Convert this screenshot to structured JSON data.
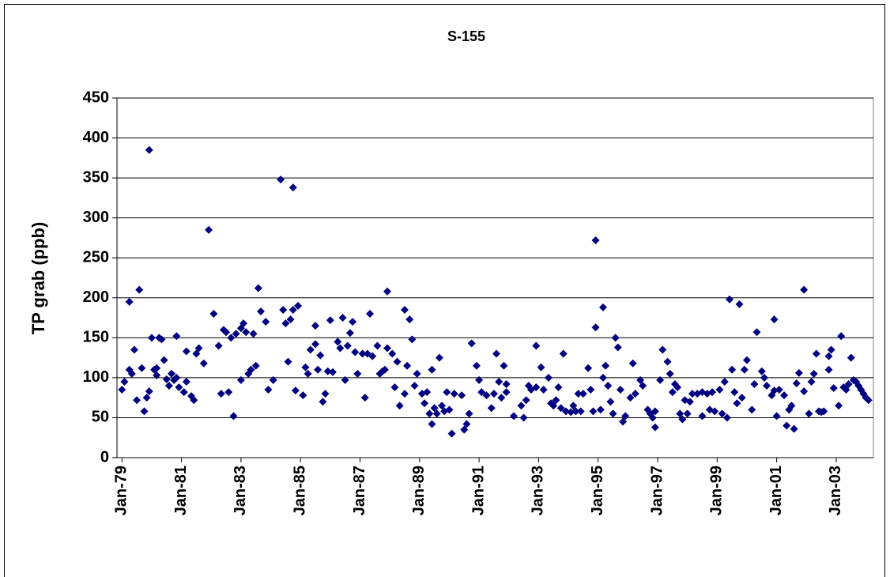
{
  "chart_data": {
    "type": "scatter",
    "title": "S-155",
    "y_label": "TP grab (ppb)",
    "color": "#000080",
    "grid": true,
    "x": [
      "1979-01",
      "1979-02",
      "1979-04",
      "1979-04",
      "1979-05",
      "1979-06",
      "1979-07",
      "1979-08",
      "1979-09",
      "1979-10",
      "1979-11",
      "1979-12",
      "1979-12",
      "1980-01",
      "1980-02",
      "1980-03",
      "1980-03",
      "1980-04",
      "1980-05",
      "1980-06",
      "1980-07",
      "1980-08",
      "1980-09",
      "1980-10",
      "1980-11",
      "1980-11",
      "1980-12",
      "1981-02",
      "1981-03",
      "1981-03",
      "1981-05",
      "1981-06",
      "1981-07",
      "1981-08",
      "1981-10",
      "1981-12",
      "1982-02",
      "1982-04",
      "1982-05",
      "1982-06",
      "1982-07",
      "1982-08",
      "1982-09",
      "1982-10",
      "1982-11",
      "1983-01",
      "1983-01",
      "1983-02",
      "1983-03",
      "1983-04",
      "1983-05",
      "1983-06",
      "1983-07",
      "1983-08",
      "1983-09",
      "1983-11",
      "1983-12",
      "1984-02",
      "1984-05",
      "1984-06",
      "1984-07",
      "1984-08",
      "1984-09",
      "1984-10",
      "1984-10",
      "1984-11",
      "1984-12",
      "1985-02",
      "1985-03",
      "1985-04",
      "1985-05",
      "1985-07",
      "1985-07",
      "1985-08",
      "1985-09",
      "1985-10",
      "1985-11",
      "1985-12",
      "1986-01",
      "1986-02",
      "1986-04",
      "1986-05",
      "1986-06",
      "1986-07",
      "1986-08",
      "1986-09",
      "1986-10",
      "1986-11",
      "1986-12",
      "1987-02",
      "1987-03",
      "1987-04",
      "1987-05",
      "1987-06",
      "1987-08",
      "1987-09",
      "1987-10",
      "1987-11",
      "1987-12",
      "1987-12",
      "1988-02",
      "1988-03",
      "1988-04",
      "1988-05",
      "1988-07",
      "1988-07",
      "1988-08",
      "1988-09",
      "1988-10",
      "1988-11",
      "1988-12",
      "1989-02",
      "1989-03",
      "1989-04",
      "1989-05",
      "1989-06",
      "1989-06",
      "1989-07",
      "1989-08",
      "1989-09",
      "1989-10",
      "1989-11",
      "1989-12",
      "1990-01",
      "1990-02",
      "1990-03",
      "1990-06",
      "1990-07",
      "1990-08",
      "1990-09",
      "1990-10",
      "1990-12",
      "1991-01",
      "1991-02",
      "1991-04",
      "1991-06",
      "1991-07",
      "1991-08",
      "1991-09",
      "1991-10",
      "1991-11",
      "1991-12",
      "1991-12",
      "1992-03",
      "1992-06",
      "1992-07",
      "1992-08",
      "1992-09",
      "1992-10",
      "1992-12",
      "1992-12",
      "1993-02",
      "1993-03",
      "1993-05",
      "1993-06",
      "1993-07",
      "1993-08",
      "1993-09",
      "1993-10",
      "1993-11",
      "1993-12",
      "1994-02",
      "1994-03",
      "1994-04",
      "1994-05",
      "1994-06",
      "1994-07",
      "1994-09",
      "1994-10",
      "1994-11",
      "1994-12",
      "1994-12",
      "1995-02",
      "1995-03",
      "1995-03",
      "1995-04",
      "1995-05",
      "1995-06",
      "1995-07",
      "1995-08",
      "1995-09",
      "1995-10",
      "1995-11",
      "1995-12",
      "1996-02",
      "1996-03",
      "1996-04",
      "1996-06",
      "1996-07",
      "1996-09",
      "1996-10",
      "1996-11",
      "1996-12",
      "1996-12",
      "1997-02",
      "1997-03",
      "1997-05",
      "1997-06",
      "1997-07",
      "1997-08",
      "1997-09",
      "1997-10",
      "1997-11",
      "1997-12",
      "1998-01",
      "1998-02",
      "1998-03",
      "1998-05",
      "1998-07",
      "1998-07",
      "1998-09",
      "1998-10",
      "1998-11",
      "1998-12",
      "1999-02",
      "1999-03",
      "1999-04",
      "1999-05",
      "1999-06",
      "1999-07",
      "1999-08",
      "1999-09",
      "1999-10",
      "1999-11",
      "1999-12",
      "2000-01",
      "2000-03",
      "2000-04",
      "2000-05",
      "2000-07",
      "2000-08",
      "2000-09",
      "2000-11",
      "2000-12",
      "2000-12",
      "2001-01",
      "2001-02",
      "2001-04",
      "2001-05",
      "2001-06",
      "2001-07",
      "2001-08",
      "2001-09",
      "2001-10",
      "2001-12",
      "2001-12",
      "2002-02",
      "2002-03",
      "2002-04",
      "2002-05",
      "2002-06",
      "2002-07",
      "2002-08",
      "2002-10",
      "2002-10",
      "2002-11",
      "2002-12",
      "2003-02",
      "2003-03",
      "2003-04",
      "2003-05",
      "2003-06",
      "2003-07",
      "2003-08",
      "2003-09",
      "2003-10",
      "2003-11",
      "2003-12",
      "2004-01",
      "2004-02"
    ],
    "values": [
      85,
      95,
      195,
      110,
      105,
      135,
      72,
      210,
      112,
      58,
      75,
      385,
      83,
      150,
      110,
      103,
      112,
      150,
      148,
      122,
      98,
      90,
      105,
      97,
      152,
      100,
      88,
      82,
      95,
      133,
      77,
      72,
      130,
      137,
      118,
      285,
      180,
      140,
      80,
      160,
      157,
      82,
      150,
      52,
      155,
      97,
      162,
      168,
      157,
      105,
      110,
      155,
      115,
      212,
      183,
      170,
      85,
      97,
      348,
      185,
      168,
      120,
      173,
      338,
      185,
      84,
      190,
      78,
      113,
      105,
      135,
      142,
      165,
      110,
      128,
      70,
      80,
      108,
      172,
      107,
      145,
      137,
      175,
      97,
      140,
      156,
      170,
      132,
      105,
      130,
      75,
      130,
      180,
      127,
      140,
      105,
      108,
      110,
      137,
      208,
      130,
      88,
      120,
      65,
      80,
      185,
      115,
      173,
      148,
      90,
      105,
      80,
      68,
      82,
      55,
      42,
      110,
      62,
      55,
      125,
      65,
      58,
      82,
      60,
      30,
      80,
      78,
      35,
      42,
      55,
      143,
      115,
      97,
      82,
      78,
      62,
      80,
      130,
      95,
      75,
      115,
      92,
      82,
      52,
      65,
      50,
      72,
      90,
      85,
      88,
      140,
      113,
      85,
      100,
      68,
      65,
      72,
      88,
      62,
      130,
      58,
      57,
      65,
      58,
      80,
      58,
      80,
      112,
      85,
      58,
      163,
      272,
      60,
      100,
      188,
      115,
      90,
      70,
      55,
      150,
      138,
      85,
      45,
      52,
      75,
      118,
      80,
      97,
      90,
      60,
      55,
      50,
      58,
      38,
      97,
      135,
      120,
      105,
      82,
      92,
      88,
      55,
      48,
      72,
      55,
      70,
      80,
      80,
      82,
      52,
      80,
      60,
      82,
      58,
      85,
      55,
      95,
      50,
      198,
      110,
      82,
      68,
      192,
      75,
      110,
      122,
      60,
      92,
      157,
      108,
      100,
      90,
      78,
      84,
      173,
      52,
      85,
      78,
      40,
      60,
      65,
      36,
      93,
      106,
      83,
      210,
      55,
      95,
      105,
      130,
      58,
      57,
      58,
      127,
      110,
      135,
      87,
      65,
      152,
      88,
      85,
      92,
      125,
      97,
      95,
      90,
      85,
      80,
      75,
      72
    ],
    "xlim": [
      "1978-11",
      "2004-04"
    ],
    "xticks": [
      {
        "value": "1979-01",
        "label": "Jan-79"
      },
      {
        "value": "1981-01",
        "label": "Jan-81"
      },
      {
        "value": "1983-01",
        "label": "Jan-83"
      },
      {
        "value": "1985-01",
        "label": "Jan-85"
      },
      {
        "value": "1987-01",
        "label": "Jan-87"
      },
      {
        "value": "1989-01",
        "label": "Jan-89"
      },
      {
        "value": "1991-01",
        "label": "Jan-91"
      },
      {
        "value": "1993-01",
        "label": "Jan-93"
      },
      {
        "value": "1995-01",
        "label": "Jan-95"
      },
      {
        "value": "1997-01",
        "label": "Jan-97"
      },
      {
        "value": "1999-01",
        "label": "Jan-99"
      },
      {
        "value": "2001-01",
        "label": "Jan-01"
      },
      {
        "value": "2003-01",
        "label": "Jan-03"
      }
    ],
    "ylim": [
      0,
      450
    ],
    "yticks": [
      0,
      50,
      100,
      150,
      200,
      250,
      300,
      350,
      400,
      450
    ]
  }
}
